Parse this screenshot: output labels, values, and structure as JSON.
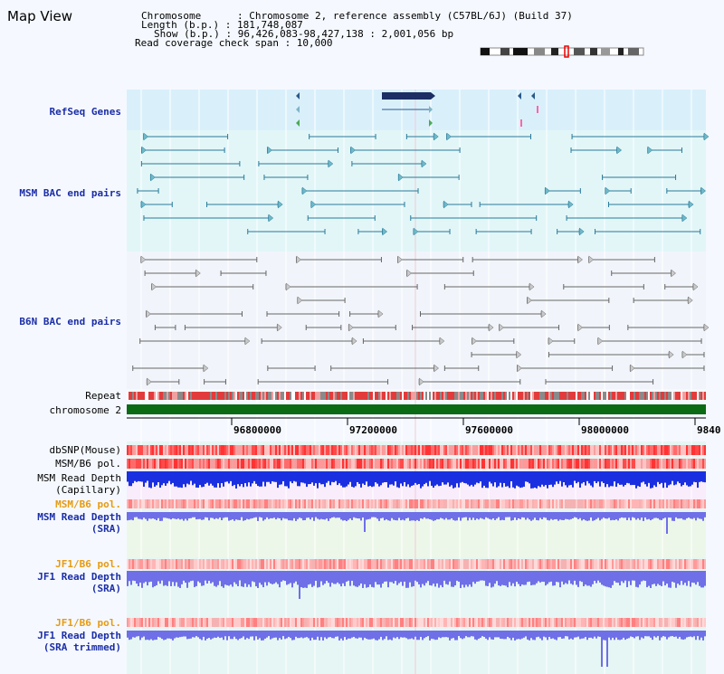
{
  "title": "Map View",
  "info": {
    "chromosome": "Chromosome      : Chromosome 2, reference assembly (C57BL/6J) (Build 37)",
    "length": "Length (b.p.) : 181,748,087",
    "show": "Show (b.p.) : 96,426,083-98,427,138 : 2,001,056 bp",
    "coverage": "Read coverage check span : 10,000"
  },
  "tracks": {
    "refseq": "RefSeq Genes",
    "msm_bac": "MSM BAC end pairs",
    "b6n_bac": "B6N BAC end pairs",
    "repeat": "Repeat",
    "chromosome": "chromosome 2",
    "dbsnp": "dbSNP(Mouse)",
    "msm_b6_pol_1": "MSM/B6 pol.",
    "msm_depth_cap_1": "MSM Read Depth",
    "msm_depth_cap_2": "(Capillary)",
    "msm_b6_pol_2": "MSM/B6 pol.",
    "msm_depth_sra_1": "MSM Read Depth",
    "msm_depth_sra_2": "(SRA)",
    "jf1_b6_pol_1": "JF1/B6 pol.",
    "jf1_depth_sra_1": "JF1 Read Depth",
    "jf1_depth_sra_2": "(SRA)",
    "jf1_b6_pol_2": "JF1/B6 pol.",
    "jf1_depth_trim_1": "JF1 Read Depth",
    "jf1_depth_trim_2": "(SRA trimmed)"
  },
  "axis": {
    "ticks": [
      "96800000",
      "97200000",
      "97600000",
      "98000000",
      "9840"
    ]
  },
  "colors": {
    "refseq": "#1c2e63",
    "msm_bac": "#2a7a99",
    "b6n_bac": "#666666",
    "chromosome": "#0a6b14",
    "depth_capillary": "#1a30e0",
    "depth_sra": "#6f6fe8",
    "snp": "#ee2222",
    "label_blue": "#1c2ea8",
    "label_orange": "#e79a12"
  }
}
